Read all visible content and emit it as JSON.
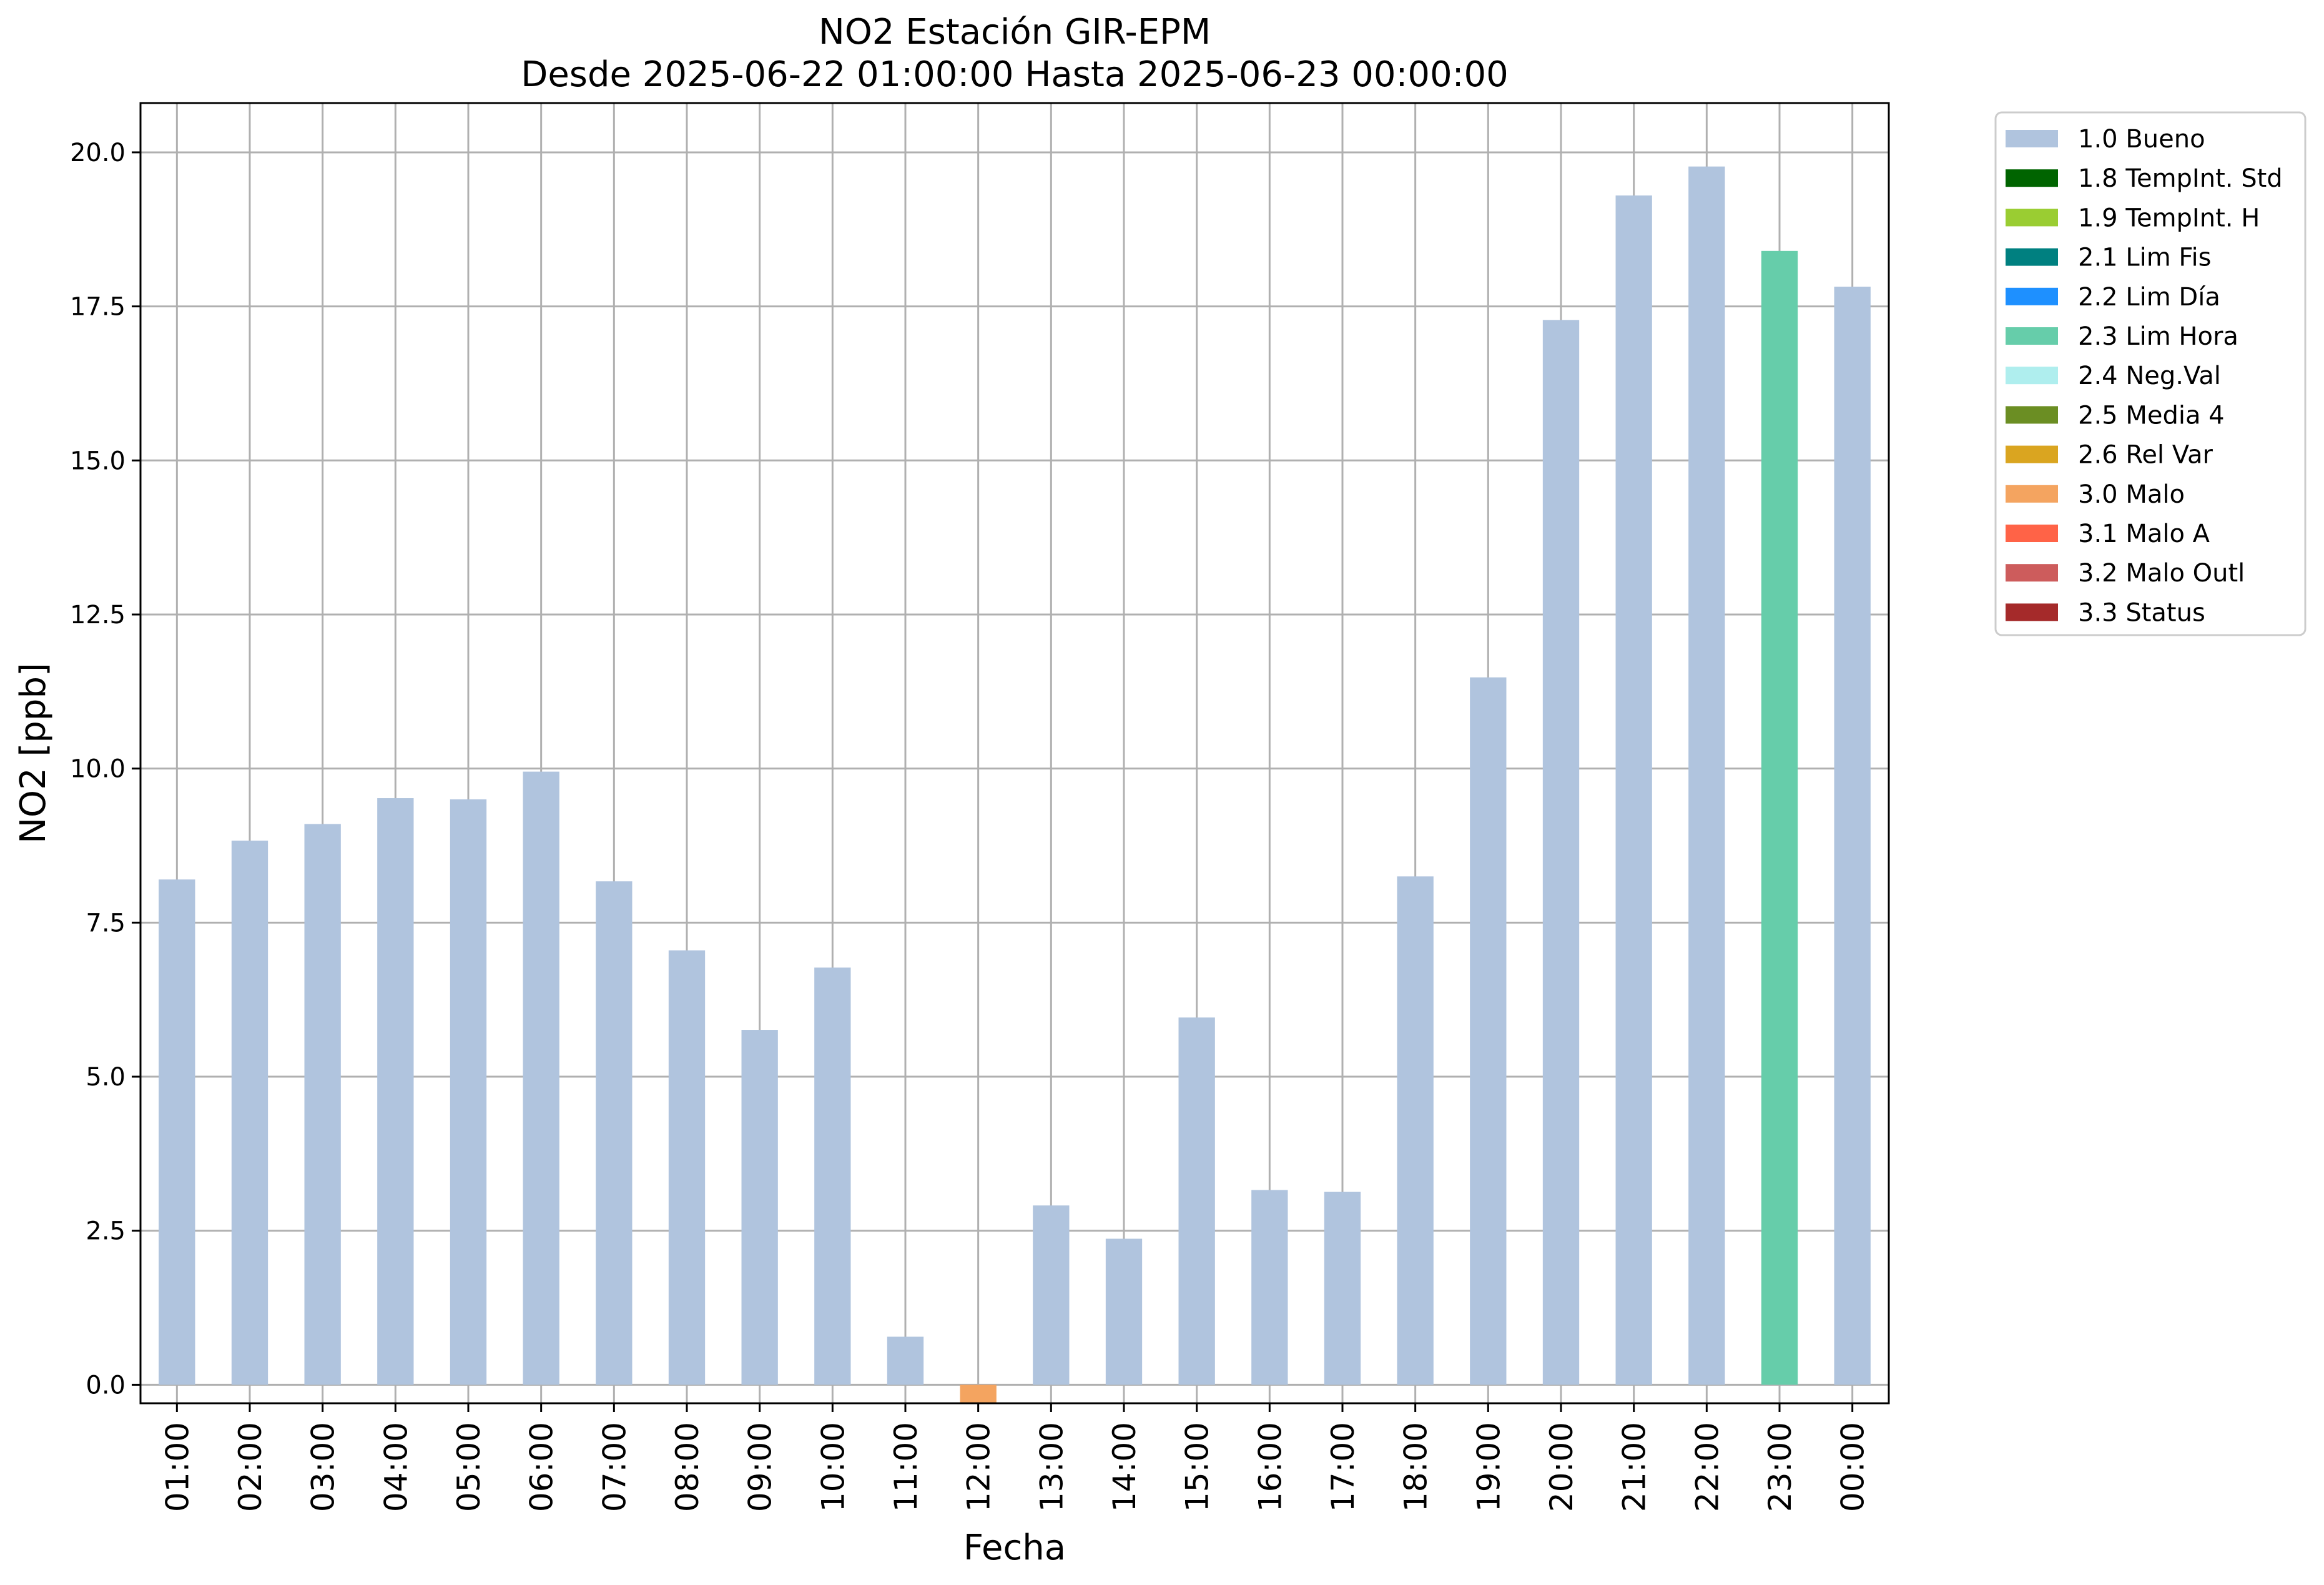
{
  "chart_data": {
    "type": "bar",
    "title": "NO2 Estación GIR-EPM",
    "subtitle": "Desde 2025-06-22 01:00:00 Hasta 2025-06-23 00:00:00",
    "xlabel": "Fecha",
    "ylabel": "NO2 [ppb]",
    "ylim": [
      -0.3,
      20.8
    ],
    "yticks": [
      0.0,
      2.5,
      5.0,
      7.5,
      10.0,
      12.5,
      15.0,
      17.5,
      20.0
    ],
    "ytick_labels": [
      "0.0",
      "2.5",
      "5.0",
      "7.5",
      "10.0",
      "12.5",
      "15.0",
      "17.5",
      "20.0"
    ],
    "grid": true,
    "legend_position": "outside top-right",
    "categories": [
      "01:00",
      "02:00",
      "03:00",
      "04:00",
      "05:00",
      "06:00",
      "07:00",
      "08:00",
      "09:00",
      "10:00",
      "11:00",
      "12:00",
      "13:00",
      "14:00",
      "15:00",
      "16:00",
      "17:00",
      "18:00",
      "19:00",
      "20:00",
      "21:00",
      "22:00",
      "23:00",
      "00:00"
    ],
    "values": [
      8.2,
      8.83,
      9.1,
      9.52,
      9.5,
      9.95,
      8.17,
      7.05,
      5.76,
      6.77,
      0.78,
      -0.3,
      2.91,
      2.37,
      5.96,
      3.16,
      3.13,
      8.25,
      11.48,
      17.28,
      19.3,
      19.77,
      18.4,
      17.82
    ],
    "flags": [
      "1.0 Bueno",
      "1.0 Bueno",
      "1.0 Bueno",
      "1.0 Bueno",
      "1.0 Bueno",
      "1.0 Bueno",
      "1.0 Bueno",
      "1.0 Bueno",
      "1.0 Bueno",
      "1.0 Bueno",
      "1.0 Bueno",
      "3.0 Malo",
      "1.0 Bueno",
      "1.0 Bueno",
      "1.0 Bueno",
      "1.0 Bueno",
      "1.0 Bueno",
      "1.0 Bueno",
      "1.0 Bueno",
      "1.0 Bueno",
      "1.0 Bueno",
      "1.0 Bueno",
      "2.3 Lim Hora",
      "1.0 Bueno"
    ],
    "legend": [
      {
        "label": "1.0 Bueno",
        "color": "#b0c4de"
      },
      {
        "label": "1.8 TempInt. Std",
        "color": "#006400"
      },
      {
        "label": "1.9 TempInt. H",
        "color": "#9acd32"
      },
      {
        "label": "2.1 Lim Fis",
        "color": "#008080"
      },
      {
        "label": "2.2 Lim Día",
        "color": "#1e90ff"
      },
      {
        "label": "2.3 Lim Hora",
        "color": "#66cdaa"
      },
      {
        "label": "2.4 Neg.Val",
        "color": "#afeeee"
      },
      {
        "label": "2.5 Media 4",
        "color": "#6b8e23"
      },
      {
        "label": "2.6 Rel Var",
        "color": "#daa520"
      },
      {
        "label": "3.0 Malo",
        "color": "#f4a460"
      },
      {
        "label": "3.1 Malo A",
        "color": "#ff6347"
      },
      {
        "label": "3.2 Malo Outl",
        "color": "#cd5c5c"
      },
      {
        "label": "3.3 Status",
        "color": "#a52a2a"
      }
    ]
  }
}
